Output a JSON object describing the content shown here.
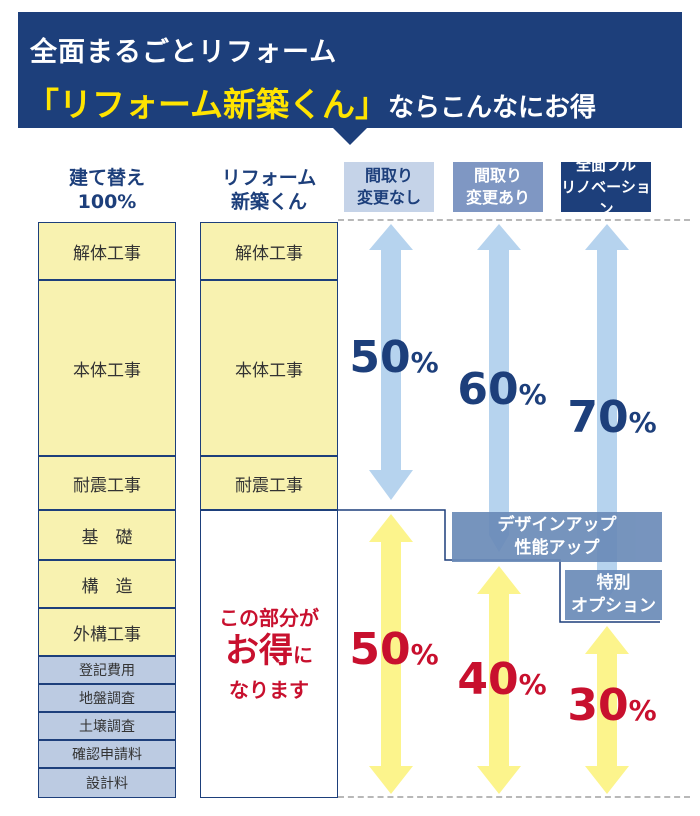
{
  "header": {
    "line1": "全面まるごとリフォーム",
    "line2_highlight": "「リフォーム新築くん」",
    "line2_rest": "ならこんなにお得"
  },
  "columns": {
    "rebuild_head": "建て替え\n100%",
    "reform_head": "リフォーム\n新築くん"
  },
  "tags": [
    {
      "label": "間取り\n変更なし",
      "bg": "#c5d3e8",
      "fg": "#1d3f7b"
    },
    {
      "label": "間取り\n変更あり",
      "bg": "#7f97c3",
      "fg": "#ffffff"
    },
    {
      "label": "全面フル\nリノベーション",
      "bg": "#1d3f7b",
      "fg": "#ffffff"
    }
  ],
  "rebuild_items": [
    "解体工事",
    "本体工事",
    "耐震工事",
    "基　礎",
    "構　造",
    "外構工事",
    "登記費用",
    "地盤調査",
    "土壌調査",
    "確認申請料",
    "設計料"
  ],
  "reform_items": [
    "解体工事",
    "本体工事",
    "耐震工事"
  ],
  "savings_note": {
    "line1": "この部分が",
    "big": "お得",
    "small": "に",
    "line3": "なります"
  },
  "cost_percent": [
    {
      "num": "50",
      "unit": "%"
    },
    {
      "num": "60",
      "unit": "%"
    },
    {
      "num": "70",
      "unit": "%"
    }
  ],
  "saving_percent": [
    {
      "num": "50",
      "unit": "%"
    },
    {
      "num": "40",
      "unit": "%"
    },
    {
      "num": "30",
      "unit": "%"
    }
  ],
  "extras": {
    "design": "デザインアップ\n性能アップ",
    "option": "特別\nオプション"
  },
  "colors": {
    "navy": "#1d3f7b",
    "yellow": "#ffe400",
    "red": "#c8102e",
    "arrow_blue": "#b6d3ee",
    "arrow_yellow": "#fcf48c"
  }
}
